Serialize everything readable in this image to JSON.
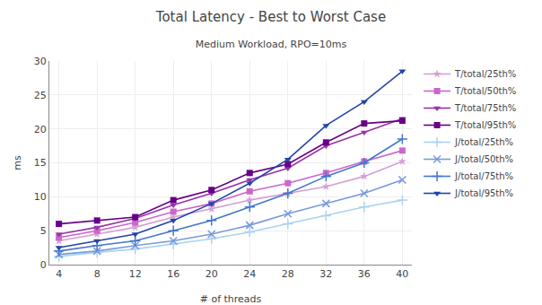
{
  "chart_data": {
    "type": "line",
    "title": "Total Latency - Best to Worst Case",
    "subtitle": "Medium Workload, RPO=10ms",
    "xlabel": "# of threads",
    "ylabel": "ms",
    "x": [
      4,
      8,
      12,
      16,
      20,
      24,
      28,
      32,
      36,
      40
    ],
    "xlim": [
      3,
      41
    ],
    "xticks": [
      4,
      8,
      12,
      16,
      20,
      24,
      28,
      32,
      36,
      40
    ],
    "ylim": [
      0,
      30
    ],
    "yticks": [
      0,
      5,
      10,
      15,
      20,
      25,
      30
    ],
    "grid": true,
    "legend": "right",
    "series": [
      {
        "name": "T/total/25th%",
        "color": "#d4a0d4",
        "marker": "star",
        "values": [
          3.5,
          4.5,
          5.5,
          7.0,
          8.2,
          9.5,
          10.5,
          11.5,
          13.0,
          15.2
        ]
      },
      {
        "name": "T/total/50th%",
        "color": "#cc66cc",
        "marker": "square",
        "values": [
          4.0,
          5.0,
          6.2,
          7.8,
          9.0,
          10.8,
          12.0,
          13.5,
          15.2,
          16.8
        ]
      },
      {
        "name": "T/total/75th%",
        "color": "#9933aa",
        "marker": "triangle-down",
        "values": [
          4.5,
          5.5,
          6.8,
          8.8,
          10.5,
          12.5,
          14.2,
          17.5,
          19.5,
          21.5
        ]
      },
      {
        "name": "T/total/95th%",
        "color": "#660088",
        "marker": "square",
        "values": [
          6.0,
          6.5,
          7.0,
          9.5,
          11.0,
          13.5,
          14.8,
          18.0,
          20.8,
          21.2
        ]
      },
      {
        "name": "J/total/25th%",
        "color": "#aad4f0",
        "marker": "plus",
        "values": [
          1.2,
          1.8,
          2.3,
          3.0,
          3.8,
          4.8,
          6.0,
          7.2,
          8.5,
          9.5
        ]
      },
      {
        "name": "J/total/50th%",
        "color": "#7799dd",
        "marker": "x",
        "values": [
          1.5,
          2.0,
          2.8,
          3.5,
          4.5,
          5.8,
          7.5,
          9.0,
          10.5,
          12.5
        ]
      },
      {
        "name": "J/total/75th%",
        "color": "#4477cc",
        "marker": "plus",
        "values": [
          2.0,
          2.8,
          3.5,
          5.0,
          6.5,
          8.5,
          10.5,
          13.0,
          15.0,
          18.5
        ]
      },
      {
        "name": "J/total/95th%",
        "color": "#2244aa",
        "marker": "triangle-down",
        "values": [
          2.5,
          3.5,
          4.5,
          6.5,
          9.0,
          12.0,
          15.5,
          20.5,
          24.0,
          28.5
        ]
      }
    ]
  }
}
